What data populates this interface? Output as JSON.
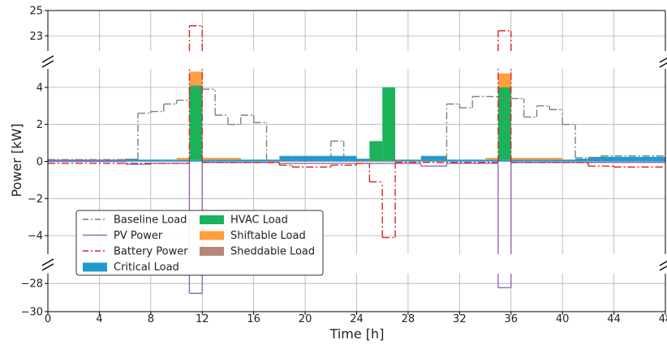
{
  "chart_data": {
    "type": "line",
    "xlabel": "Time [h]",
    "ylabel": "Power [kW]",
    "xlim": [
      0,
      48
    ],
    "x_ticks": [
      0,
      4,
      8,
      12,
      16,
      20,
      24,
      28,
      32,
      36,
      40,
      44,
      48
    ],
    "y_panels": [
      {
        "name": "top",
        "ylim": [
          21.8,
          25
        ],
        "ticks": [
          23,
          25
        ]
      },
      {
        "name": "middle",
        "ylim": [
          -5,
          5
        ],
        "ticks": [
          -4,
          -2,
          0,
          2,
          4
        ]
      },
      {
        "name": "bottom",
        "ylim": [
          -30,
          -27.3
        ],
        "ticks": [
          -30,
          -28
        ]
      }
    ],
    "grid": true,
    "axis_break": true,
    "legend": {
      "placement": "lower-left",
      "entries": [
        {
          "label": "Baseline Load",
          "color": "#7f7f7f",
          "style": "dashdot-line"
        },
        {
          "label": "PV Power",
          "color": "#9467bd",
          "style": "line"
        },
        {
          "label": "Battery Power",
          "color": "#d62728",
          "style": "dashdot-line"
        },
        {
          "label": "Critical Load",
          "color": "#1f9bd0",
          "style": "patch"
        },
        {
          "label": "HVAC Load",
          "color": "#1bb35a",
          "style": "patch"
        },
        {
          "label": "Shiftable Load",
          "color": "#ff9f40",
          "style": "patch"
        },
        {
          "label": "Sheddable Load",
          "color": "#b5867a",
          "style": "patch"
        }
      ]
    },
    "series": [
      {
        "name": "Baseline Load",
        "color": "#7f7f7f",
        "style": "dashdot-step",
        "steps": [
          [
            0,
            0.1
          ],
          [
            6,
            0.1
          ],
          [
            7,
            2.6
          ],
          [
            8,
            2.7
          ],
          [
            9,
            3.1
          ],
          [
            10,
            3.3
          ],
          [
            11,
            4.0
          ],
          [
            12,
            3.9
          ],
          [
            13,
            2.5
          ],
          [
            14,
            2.0
          ],
          [
            15,
            2.5
          ],
          [
            16,
            2.1
          ],
          [
            17,
            0.05
          ],
          [
            21,
            0.05
          ],
          [
            22,
            1.1
          ],
          [
            23,
            0.05
          ],
          [
            29,
            0.05
          ],
          [
            31,
            3.1
          ],
          [
            32,
            2.9
          ],
          [
            33,
            3.5
          ],
          [
            35,
            3.4
          ],
          [
            36,
            3.4
          ],
          [
            37,
            2.4
          ],
          [
            38,
            3.0
          ],
          [
            39,
            2.8
          ],
          [
            40,
            2.0
          ],
          [
            41,
            0.2
          ],
          [
            42,
            0.2
          ],
          [
            43,
            0.3
          ],
          [
            48,
            0.3
          ]
        ]
      },
      {
        "name": "PV Power",
        "color": "#9467bd",
        "style": "step",
        "steps": [
          [
            0,
            0
          ],
          [
            6,
            -0.15
          ],
          [
            8,
            -0.1
          ],
          [
            11,
            -28.7
          ],
          [
            12,
            -0.05
          ],
          [
            16,
            -0.05
          ],
          [
            18,
            -0.1
          ],
          [
            29,
            -0.25
          ],
          [
            31,
            -0.1
          ],
          [
            35,
            -28.3
          ],
          [
            36,
            -0.05
          ],
          [
            48,
            0
          ]
        ]
      },
      {
        "name": "Battery Power",
        "color": "#d62728",
        "style": "dashdot-step",
        "steps": [
          [
            0,
            -0.1
          ],
          [
            11,
            23.8
          ],
          [
            12,
            -0.05
          ],
          [
            16,
            -0.05
          ],
          [
            18,
            -0.2
          ],
          [
            19,
            -0.3
          ],
          [
            22,
            -0.2
          ],
          [
            24,
            -0.1
          ],
          [
            25,
            -1.1
          ],
          [
            26,
            -4.1
          ],
          [
            27,
            -0.05
          ],
          [
            35,
            23.4
          ],
          [
            36,
            -0.05
          ],
          [
            40,
            -0.05
          ],
          [
            42,
            -0.25
          ],
          [
            44,
            -0.3
          ],
          [
            48,
            -0.3
          ]
        ]
      }
    ],
    "stacked_bars": {
      "width_h": 1,
      "bars": [
        {
          "x": 0,
          "critical": 0.1
        },
        {
          "x": 1,
          "critical": 0.1
        },
        {
          "x": 2,
          "critical": 0.1
        },
        {
          "x": 3,
          "critical": 0.1
        },
        {
          "x": 4,
          "critical": 0.1
        },
        {
          "x": 5,
          "critical": 0.1
        },
        {
          "x": 6,
          "critical": 0.15
        },
        {
          "x": 7,
          "critical": 0.1
        },
        {
          "x": 8,
          "critical": 0.1
        },
        {
          "x": 9,
          "critical": 0.1
        },
        {
          "x": 10,
          "critical": 0.1,
          "shiftable": 0.1
        },
        {
          "x": 11,
          "critical": 0.1,
          "hvac": 4.0,
          "shiftable": 0.75
        },
        {
          "x": 12,
          "critical": 0.1,
          "shiftable": 0.1
        },
        {
          "x": 13,
          "critical": 0.1,
          "shiftable": 0.1
        },
        {
          "x": 14,
          "critical": 0.1,
          "shiftable": 0.1
        },
        {
          "x": 15,
          "critical": 0.1
        },
        {
          "x": 16,
          "critical": 0.1
        },
        {
          "x": 17,
          "critical": 0.1
        },
        {
          "x": 18,
          "critical": 0.3
        },
        {
          "x": 19,
          "critical": 0.3
        },
        {
          "x": 20,
          "critical": 0.3
        },
        {
          "x": 21,
          "critical": 0.3
        },
        {
          "x": 22,
          "critical": 0.3
        },
        {
          "x": 23,
          "critical": 0.3
        },
        {
          "x": 24,
          "critical": 0.15
        },
        {
          "x": 25,
          "hvac": 1.1
        },
        {
          "x": 26,
          "hvac": 4.0
        },
        {
          "x": 27,
          "critical": 0.1
        },
        {
          "x": 28,
          "critical": 0.1
        },
        {
          "x": 29,
          "critical": 0.3
        },
        {
          "x": 30,
          "critical": 0.3
        },
        {
          "x": 31,
          "critical": 0.1
        },
        {
          "x": 32,
          "critical": 0.1
        },
        {
          "x": 33,
          "critical": 0.1
        },
        {
          "x": 34,
          "critical": 0.1,
          "shiftable": 0.1
        },
        {
          "x": 35,
          "critical": 0.1,
          "hvac": 3.9,
          "shiftable": 0.75
        },
        {
          "x": 36,
          "critical": 0.1,
          "shiftable": 0.1
        },
        {
          "x": 37,
          "critical": 0.1,
          "shiftable": 0.1
        },
        {
          "x": 38,
          "critical": 0.1,
          "shiftable": 0.1
        },
        {
          "x": 39,
          "critical": 0.1,
          "shiftable": 0.1
        },
        {
          "x": 40,
          "critical": 0.1
        },
        {
          "x": 41,
          "critical": 0.15
        },
        {
          "x": 42,
          "critical": 0.25
        },
        {
          "x": 43,
          "critical": 0.25
        },
        {
          "x": 44,
          "critical": 0.25
        },
        {
          "x": 45,
          "critical": 0.25
        },
        {
          "x": 46,
          "critical": 0.25
        },
        {
          "x": 47,
          "critical": 0.25
        }
      ],
      "colors": {
        "critical": "#1f9bd0",
        "hvac": "#1bb35a",
        "shiftable": "#ff9f40",
        "sheddable": "#b5867a"
      }
    }
  }
}
